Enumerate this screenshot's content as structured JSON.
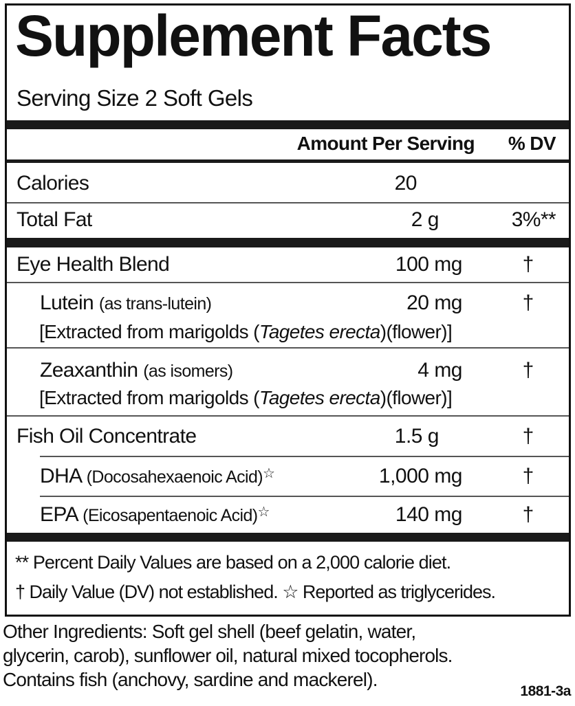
{
  "title": "Supplement Facts",
  "serving_size": "Serving Size 2 Soft Gels",
  "header": {
    "amount": "Amount Per Serving",
    "dv": "% DV"
  },
  "rows": [
    {
      "name": "Calories",
      "amount": "20",
      "dv": ""
    },
    {
      "name": "Total Fat",
      "amount": "2 g",
      "dv": "3%**"
    },
    {
      "name": "Eye Health Blend",
      "amount": "100 mg",
      "dv": "†"
    },
    {
      "name": "Lutein",
      "detail": "(as trans-lutein)",
      "amount": "20 mg",
      "dv": "†",
      "source_prefix": "[Extracted from marigolds (",
      "source_italic": "Tagetes erecta",
      "source_suffix": ")(flower)]"
    },
    {
      "name": "Zeaxanthin",
      "detail": "(as isomers)",
      "amount": "4 mg",
      "dv": "†",
      "source_prefix": "[Extracted from marigolds (",
      "source_italic": "Tagetes erecta",
      "source_suffix": ")(flower)]"
    },
    {
      "name": "Fish Oil Concentrate",
      "amount": "1.5 g",
      "dv": "†"
    },
    {
      "name": "DHA",
      "detail": "(Docosahexaenoic Acid)",
      "mark": "☆",
      "amount": "1,000 mg",
      "dv": "†"
    },
    {
      "name": "EPA",
      "detail": "(Eicosapentaenoic Acid)",
      "mark": "☆",
      "amount": "140 mg",
      "dv": "†"
    }
  ],
  "footnotes": [
    "** Percent Daily Values are based on a 2,000 calorie diet.",
    "† Daily Value (DV) not established. ☆ Reported as triglycerides."
  ],
  "other_ingredients": [
    "Other Ingredients: Soft gel shell (beef gelatin, water,",
    "glycerin, carob), sunflower oil, natural mixed tocopherols.",
    "Contains fish (anchovy, sardine and mackerel)."
  ],
  "code": "1881-3a"
}
